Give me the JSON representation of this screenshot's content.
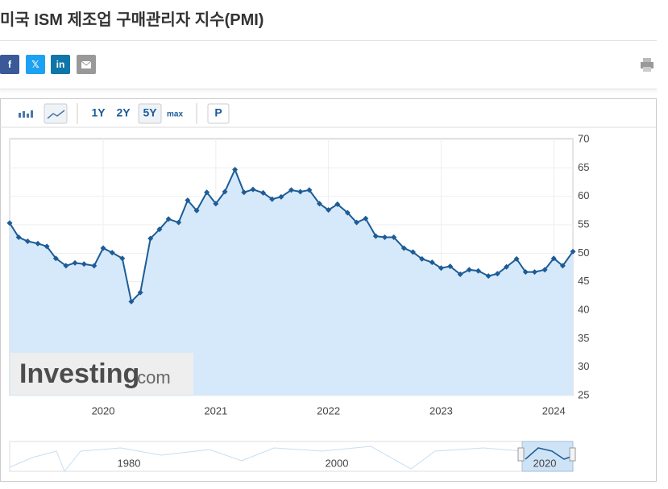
{
  "header": {
    "title": "미국 ISM 제조업 구매관리자 지수(PMI)"
  },
  "share": [
    "f",
    "𝕏",
    "in"
  ],
  "toolbar": {
    "ranges": [
      "1Y",
      "2Y",
      "5Y",
      "max"
    ],
    "p": "P"
  },
  "watermark": [
    "Investing",
    ".com"
  ],
  "navigator": {
    "labels": [
      "1980",
      "2000",
      "2020"
    ]
  },
  "chart_data": {
    "type": "line",
    "color": "#1d5c96",
    "grid": true,
    "x": [
      2019.17,
      2019.25,
      2019.33,
      2019.42,
      2019.5,
      2019.58,
      2019.67,
      2019.75,
      2019.83,
      2019.92,
      2020,
      2020.08,
      2020.17,
      2020.25,
      2020.33,
      2020.42,
      2020.5,
      2020.58,
      2020.67,
      2020.75,
      2020.83,
      2020.92,
      2021,
      2021.08,
      2021.17,
      2021.25,
      2021.33,
      2021.42,
      2021.5,
      2021.58,
      2021.67,
      2021.75,
      2021.83,
      2021.92,
      2022,
      2022.08,
      2022.17,
      2022.25,
      2022.33,
      2022.42,
      2022.5,
      2022.58,
      2022.67,
      2022.75,
      2022.83,
      2022.92,
      2023,
      2023.08,
      2023.17,
      2023.25,
      2023.33,
      2023.42,
      2023.5,
      2023.58,
      2023.67,
      2023.75,
      2023.83,
      2023.92,
      2024,
      2024.08,
      2024.17
    ],
    "values": [
      55.3,
      52.8,
      52.1,
      51.7,
      51.2,
      49.1,
      47.8,
      48.3,
      48.1,
      47.8,
      50.9,
      50.1,
      49.1,
      41.5,
      43.1,
      52.6,
      54.2,
      56.0,
      55.4,
      59.3,
      57.5,
      60.7,
      58.7,
      60.8,
      64.7,
      60.7,
      61.2,
      60.6,
      59.5,
      59.9,
      61.1,
      60.8,
      61.1,
      58.7,
      57.6,
      58.6,
      57.1,
      55.4,
      56.1,
      53.0,
      52.8,
      52.8,
      50.9,
      50.2,
      49.0,
      48.4,
      47.4,
      47.7,
      46.3,
      47.1,
      46.9,
      46.0,
      46.4,
      47.6,
      49.0,
      46.7,
      46.7,
      47.1,
      49.1,
      47.8,
      50.3
    ],
    "xlim": [
      2019.17,
      2024.17
    ],
    "xticks": [
      2020,
      2021,
      2022,
      2023,
      2024
    ],
    "ylim": [
      25,
      70
    ],
    "yticks": [
      25,
      30,
      35,
      40,
      45,
      50,
      55,
      60,
      65,
      70
    ]
  }
}
